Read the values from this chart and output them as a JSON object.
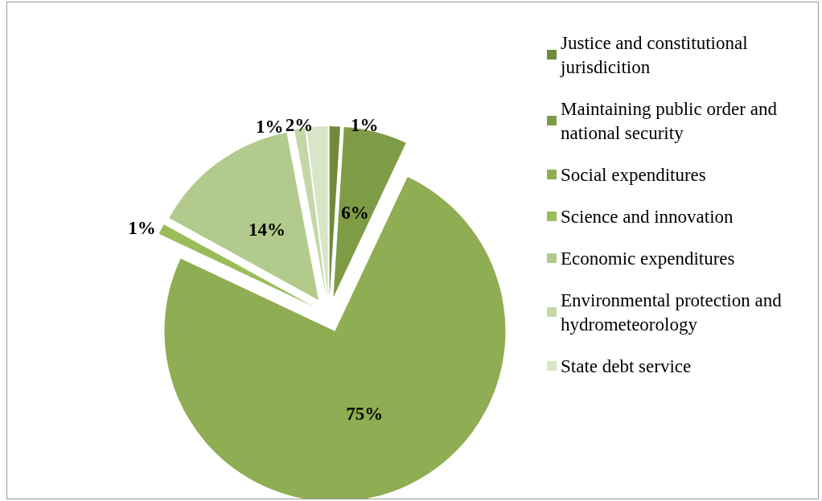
{
  "chart_data": {
    "type": "pie",
    "categories": [
      "Justice and constitutional jurisdicition",
      "Maintaining public order and national security",
      "Social expenditures",
      "Science and innovation",
      "Economic expenditures",
      "Environmental protection and hydrometeorology",
      "State debt service"
    ],
    "values": [
      1,
      6,
      75,
      1,
      14,
      1,
      2
    ],
    "colors": [
      "#6e8a3a",
      "#7e9c46",
      "#8fad52",
      "#9cbc5c",
      "#b2ca8b",
      "#c5d7a8",
      "#d8e5c6"
    ],
    "value_labels": [
      "1%",
      "6%",
      "75%",
      "1%",
      "14%",
      "1%",
      "2%"
    ],
    "legend": "right"
  }
}
